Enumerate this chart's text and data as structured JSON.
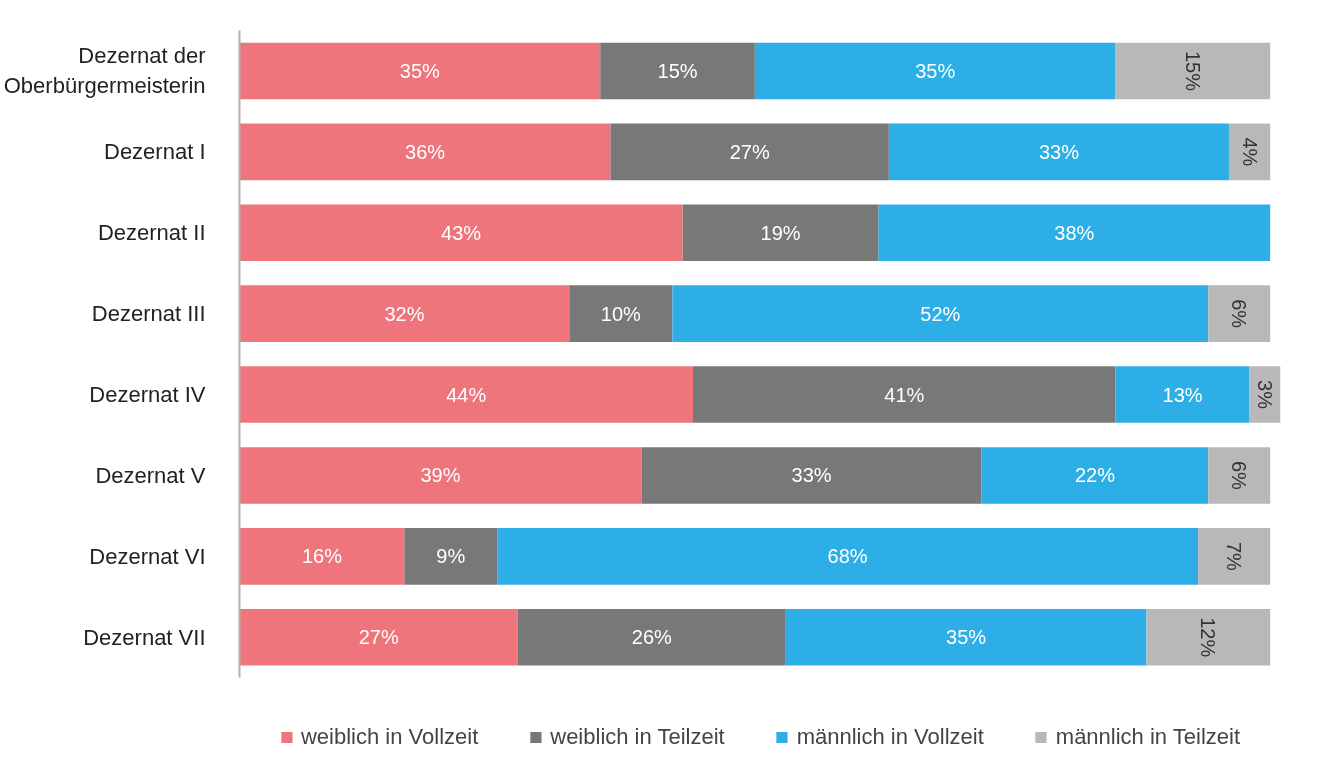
{
  "chart_data": {
    "type": "bar",
    "orientation": "horizontal",
    "stacked": true,
    "data_labels": true,
    "legend": "bottom",
    "grid": false,
    "categories": [
      "Dezernat der\nOberbürgermeisterin",
      "Dezernat I",
      "Dezernat II",
      "Dezernat III",
      "Dezernat IV",
      "Dezernat V",
      "Dezernat VI",
      "Dezernat VII"
    ],
    "series": [
      {
        "name": "weiblich in Vollzeit",
        "color": "#ee757b",
        "values": [
          35,
          36,
          43,
          32,
          44,
          39,
          16,
          27
        ],
        "value_labels": [
          "35%",
          "36%",
          "43%",
          "32%",
          "44%",
          "39%",
          "16%",
          "27%"
        ]
      },
      {
        "name": "weiblich in Teilzeit",
        "color": "#787878",
        "values": [
          15,
          27,
          19,
          10,
          41,
          33,
          9,
          26
        ],
        "value_labels": [
          "15%",
          "27%",
          "19%",
          "10%",
          "41%",
          "33%",
          "9%",
          "26%"
        ]
      },
      {
        "name": "männlich in Vollzeit",
        "color": "#2eaee6",
        "values": [
          35,
          33,
          38,
          52,
          13,
          22,
          68,
          35
        ],
        "value_labels": [
          "35%",
          "33%",
          "38%",
          "52%",
          "13%",
          "22%",
          "68%",
          "35%"
        ]
      },
      {
        "name": "männlich in Teilzeit",
        "color": "#b8b8b8",
        "values": [
          15,
          4,
          null,
          6,
          3,
          6,
          7,
          12
        ],
        "value_labels": [
          "15%",
          "4%",
          null,
          "6%",
          "3%",
          "6%",
          "7%",
          "12%"
        ]
      }
    ]
  }
}
